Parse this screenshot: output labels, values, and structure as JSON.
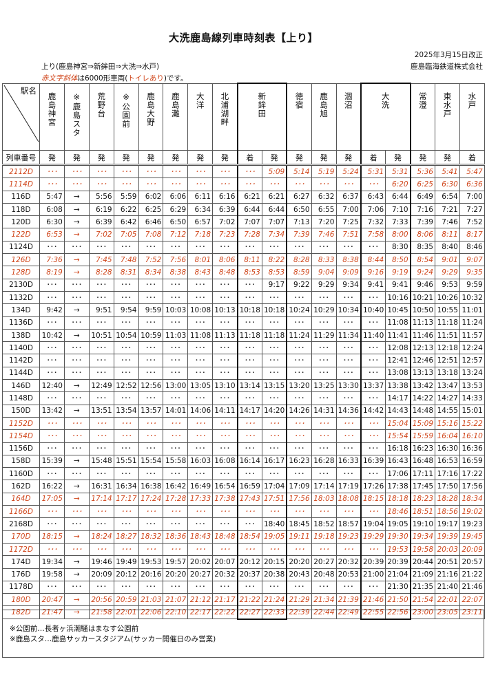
{
  "header": {
    "title": "大洗鹿島線列車時刻表【上り】",
    "revision": "2025年3月15日改正",
    "company": "鹿島臨海鉄道株式会社",
    "direction": "上り(鹿島神宮⇒新鉾田⇒大洗⇒水戸)",
    "note_red1": "赤文字斜体",
    "note_mid": "は6000形車両(",
    "note_red2": "トイレあり",
    "note_end": ")です。"
  },
  "table": {
    "corner_label": "駅名",
    "train_no_label": "列車番号",
    "stations": [
      "鹿島神宮",
      "※鹿島スタ",
      "荒野台",
      "※公園前",
      "鹿島大野",
      "鹿島灘",
      "大洋",
      "北浦湖畔",
      "新鉾田",
      "徳宿",
      "鹿島旭",
      "涸沼",
      "大洗",
      "常澄",
      "東水戸",
      "水戸"
    ],
    "subheaders": [
      "発",
      "発",
      "発",
      "発",
      "発",
      "発",
      "発",
      "発",
      "着",
      "発",
      "発",
      "発",
      "発",
      "着",
      "発",
      "発",
      "発",
      "着"
    ],
    "colors": {
      "red_train": "#d0461b"
    },
    "rows": [
      {
        "train": "2112D",
        "red": true,
        "times": [
          "･･･",
          "･･･",
          "･･･",
          "･･･",
          "･･･",
          "･･･",
          "･･･",
          "･･･",
          "･･･",
          "5:09",
          "5:14",
          "5:19",
          "5:24",
          "5:31",
          "5:31",
          "5:36",
          "5:41",
          "5:47"
        ]
      },
      {
        "train": "1114D",
        "red": true,
        "times": [
          "･･･",
          "･･･",
          "･･･",
          "･･･",
          "･･･",
          "･･･",
          "･･･",
          "･･･",
          "･･･",
          "･･･",
          "･･･",
          "･･･",
          "･･･",
          "･･･",
          "6:20",
          "6:25",
          "6:30",
          "6:36"
        ]
      },
      {
        "train": "116D",
        "red": false,
        "times": [
          "5:47",
          "→",
          "5:56",
          "5:59",
          "6:02",
          "6:06",
          "6:11",
          "6:16",
          "6:21",
          "6:21",
          "6:27",
          "6:32",
          "6:37",
          "6:43",
          "6:44",
          "6:49",
          "6:54",
          "7:00"
        ]
      },
      {
        "train": "118D",
        "red": false,
        "times": [
          "6:08",
          "→",
          "6:19",
          "6:22",
          "6:25",
          "6:29",
          "6:34",
          "6:39",
          "6:44",
          "6:44",
          "6:50",
          "6:55",
          "7:00",
          "7:06",
          "7:10",
          "7:16",
          "7:21",
          "7:27"
        ]
      },
      {
        "train": "120D",
        "red": false,
        "times": [
          "6:30",
          "→",
          "6:39",
          "6:42",
          "6:46",
          "6:50",
          "6:57",
          "7:02",
          "7:07",
          "7:07",
          "7:13",
          "7:20",
          "7:25",
          "7:32",
          "7:33",
          "7:39",
          "7:46",
          "7:52"
        ]
      },
      {
        "train": "122D",
        "red": true,
        "times": [
          "6:53",
          "→",
          "7:02",
          "7:05",
          "7:08",
          "7:12",
          "7:18",
          "7:23",
          "7:28",
          "7:34",
          "7:39",
          "7:46",
          "7:51",
          "7:58",
          "8:00",
          "8:06",
          "8:11",
          "8:17"
        ]
      },
      {
        "train": "1124D",
        "red": false,
        "times": [
          "･･･",
          "･･･",
          "･･･",
          "･･･",
          "･･･",
          "･･･",
          "･･･",
          "･･･",
          "･･･",
          "･･･",
          "･･･",
          "･･･",
          "･･･",
          "･･･",
          "8:30",
          "8:35",
          "8:40",
          "8:46"
        ]
      },
      {
        "train": "126D",
        "red": true,
        "times": [
          "7:36",
          "→",
          "7:45",
          "7:48",
          "7:52",
          "7:56",
          "8:01",
          "8:06",
          "8:11",
          "8:22",
          "8:28",
          "8:33",
          "8:38",
          "8:44",
          "8:50",
          "8:54",
          "9:01",
          "9:07"
        ]
      },
      {
        "train": "128D",
        "red": true,
        "times": [
          "8:19",
          "→",
          "8:28",
          "8:31",
          "8:34",
          "8:38",
          "8:43",
          "8:48",
          "8:53",
          "8:53",
          "8:59",
          "9:04",
          "9:09",
          "9:16",
          "9:19",
          "9:24",
          "9:29",
          "9:35"
        ]
      },
      {
        "train": "2130D",
        "red": false,
        "times": [
          "･･･",
          "･･･",
          "･･･",
          "･･･",
          "･･･",
          "･･･",
          "･･･",
          "･･･",
          "･･･",
          "9:17",
          "9:22",
          "9:29",
          "9:34",
          "9:41",
          "9:41",
          "9:46",
          "9:53",
          "9:59"
        ]
      },
      {
        "train": "1132D",
        "red": false,
        "times": [
          "･･･",
          "･･･",
          "･･･",
          "･･･",
          "･･･",
          "･･･",
          "･･･",
          "･･･",
          "･･･",
          "･･･",
          "･･･",
          "･･･",
          "･･･",
          "･･･",
          "10:16",
          "10:21",
          "10:26",
          "10:32"
        ]
      },
      {
        "train": "134D",
        "red": false,
        "times": [
          "9:42",
          "→",
          "9:51",
          "9:54",
          "9:59",
          "10:03",
          "10:08",
          "10:13",
          "10:18",
          "10:18",
          "10:24",
          "10:29",
          "10:34",
          "10:40",
          "10:45",
          "10:50",
          "10:55",
          "11:01"
        ]
      },
      {
        "train": "1136D",
        "red": false,
        "times": [
          "･･･",
          "･･･",
          "･･･",
          "･･･",
          "･･･",
          "･･･",
          "･･･",
          "･･･",
          "･･･",
          "･･･",
          "･･･",
          "･･･",
          "･･･",
          "･･･",
          "11:08",
          "11:13",
          "11:18",
          "11:24"
        ]
      },
      {
        "train": "138D",
        "red": false,
        "times": [
          "10:42",
          "→",
          "10:51",
          "10:54",
          "10:59",
          "11:03",
          "11:08",
          "11:13",
          "11:18",
          "11:18",
          "11:24",
          "11:29",
          "11:34",
          "11:40",
          "11:41",
          "11:46",
          "11:51",
          "11:57"
        ]
      },
      {
        "train": "1140D",
        "red": false,
        "times": [
          "･･･",
          "･･･",
          "･･･",
          "･･･",
          "･･･",
          "･･･",
          "･･･",
          "･･･",
          "･･･",
          "･･･",
          "･･･",
          "･･･",
          "･･･",
          "･･･",
          "12:08",
          "12:13",
          "12:18",
          "12:24"
        ]
      },
      {
        "train": "1142D",
        "red": false,
        "times": [
          "･･･",
          "･･･",
          "･･･",
          "･･･",
          "･･･",
          "･･･",
          "･･･",
          "･･･",
          "･･･",
          "･･･",
          "･･･",
          "･･･",
          "･･･",
          "･･･",
          "12:41",
          "12:46",
          "12:51",
          "12:57"
        ]
      },
      {
        "train": "1144D",
        "red": false,
        "times": [
          "･･･",
          "･･･",
          "･･･",
          "･･･",
          "･･･",
          "･･･",
          "･･･",
          "･･･",
          "･･･",
          "･･･",
          "･･･",
          "･･･",
          "･･･",
          "･･･",
          "13:08",
          "13:13",
          "13:18",
          "13:24"
        ]
      },
      {
        "train": "146D",
        "red": false,
        "times": [
          "12:40",
          "→",
          "12:49",
          "12:52",
          "12:56",
          "13:00",
          "13:05",
          "13:10",
          "13:14",
          "13:15",
          "13:20",
          "13:25",
          "13:30",
          "13:37",
          "13:38",
          "13:42",
          "13:47",
          "13:53"
        ]
      },
      {
        "train": "1148D",
        "red": false,
        "times": [
          "･･･",
          "･･･",
          "･･･",
          "･･･",
          "･･･",
          "･･･",
          "･･･",
          "･･･",
          "･･･",
          "･･･",
          "･･･",
          "･･･",
          "･･･",
          "･･･",
          "14:17",
          "14:22",
          "14:27",
          "14:33"
        ]
      },
      {
        "train": "150D",
        "red": false,
        "times": [
          "13:42",
          "→",
          "13:51",
          "13:54",
          "13:57",
          "14:01",
          "14:06",
          "14:11",
          "14:17",
          "14:20",
          "14:26",
          "14:31",
          "14:36",
          "14:42",
          "14:43",
          "14:48",
          "14:55",
          "15:01"
        ]
      },
      {
        "train": "1152D",
        "red": true,
        "times": [
          "･･･",
          "･･･",
          "･･･",
          "･･･",
          "･･･",
          "･･･",
          "･･･",
          "･･･",
          "･･･",
          "･･･",
          "･･･",
          "･･･",
          "･･･",
          "･･･",
          "15:04",
          "15:09",
          "15:16",
          "15:22"
        ]
      },
      {
        "train": "1154D",
        "red": true,
        "times": [
          "･･･",
          "･･･",
          "･･･",
          "･･･",
          "･･･",
          "･･･",
          "･･･",
          "･･･",
          "･･･",
          "･･･",
          "･･･",
          "･･･",
          "･･･",
          "･･･",
          "15:54",
          "15:59",
          "16:04",
          "16:10"
        ]
      },
      {
        "train": "1156D",
        "red": false,
        "times": [
          "･･･",
          "･･･",
          "･･･",
          "･･･",
          "･･･",
          "･･･",
          "･･･",
          "･･･",
          "･･･",
          "･･･",
          "･･･",
          "･･･",
          "･･･",
          "･･･",
          "16:18",
          "16:23",
          "16:30",
          "16:36"
        ]
      },
      {
        "train": "158D",
        "red": false,
        "times": [
          "15:39",
          "→",
          "15:48",
          "15:51",
          "15:54",
          "15:58",
          "16:03",
          "16:08",
          "16:14",
          "16:17",
          "16:23",
          "16:28",
          "16:33",
          "16:39",
          "16:43",
          "16:48",
          "16:53",
          "16:59"
        ]
      },
      {
        "train": "1160D",
        "red": false,
        "times": [
          "･･･",
          "･･･",
          "･･･",
          "･･･",
          "･･･",
          "･･･",
          "･･･",
          "･･･",
          "･･･",
          "･･･",
          "･･･",
          "･･･",
          "･･･",
          "･･･",
          "17:06",
          "17:11",
          "17:16",
          "17:22"
        ]
      },
      {
        "train": "162D",
        "red": false,
        "times": [
          "16:22",
          "→",
          "16:31",
          "16:34",
          "16:38",
          "16:42",
          "16:49",
          "16:54",
          "16:59",
          "17:04",
          "17:09",
          "17:14",
          "17:19",
          "17:26",
          "17:38",
          "17:45",
          "17:50",
          "17:56"
        ]
      },
      {
        "train": "164D",
        "red": true,
        "times": [
          "17:05",
          "→",
          "17:14",
          "17:17",
          "17:24",
          "17:28",
          "17:33",
          "17:38",
          "17:43",
          "17:51",
          "17:56",
          "18:03",
          "18:08",
          "18:15",
          "18:18",
          "18:23",
          "18:28",
          "18:34"
        ]
      },
      {
        "train": "1166D",
        "red": true,
        "times": [
          "･･･",
          "･･･",
          "･･･",
          "･･･",
          "･･･",
          "･･･",
          "･･･",
          "･･･",
          "･･･",
          "･･･",
          "･･･",
          "･･･",
          "･･･",
          "･･･",
          "18:46",
          "18:51",
          "18:56",
          "19:02"
        ]
      },
      {
        "train": "2168D",
        "red": false,
        "times": [
          "･･･",
          "･･･",
          "･･･",
          "･･･",
          "･･･",
          "･･･",
          "･･･",
          "･･･",
          "･･･",
          "18:40",
          "18:45",
          "18:52",
          "18:57",
          "19:04",
          "19:05",
          "19:10",
          "19:17",
          "19:23"
        ]
      },
      {
        "train": "170D",
        "red": true,
        "times": [
          "18:15",
          "→",
          "18:24",
          "18:27",
          "18:32",
          "18:36",
          "18:43",
          "18:48",
          "18:54",
          "19:05",
          "19:11",
          "19:18",
          "19:23",
          "19:29",
          "19:30",
          "19:34",
          "19:39",
          "19:45"
        ]
      },
      {
        "train": "1172D",
        "red": true,
        "times": [
          "･･･",
          "･･･",
          "･･･",
          "･･･",
          "･･･",
          "･･･",
          "･･･",
          "･･･",
          "･･･",
          "･･･",
          "･･･",
          "･･･",
          "･･･",
          "･･･",
          "19:53",
          "19:58",
          "20:03",
          "20:09"
        ]
      },
      {
        "train": "174D",
        "red": false,
        "times": [
          "19:34",
          "→",
          "19:46",
          "19:49",
          "19:53",
          "19:57",
          "20:02",
          "20:07",
          "20:12",
          "20:15",
          "20:20",
          "20:27",
          "20:32",
          "20:39",
          "20:39",
          "20:44",
          "20:51",
          "20:57"
        ]
      },
      {
        "train": "176D",
        "red": false,
        "times": [
          "19:58",
          "→",
          "20:09",
          "20:12",
          "20:16",
          "20:20",
          "20:27",
          "20:32",
          "20:37",
          "20:38",
          "20:43",
          "20:48",
          "20:53",
          "21:00",
          "21:04",
          "21:09",
          "21:16",
          "21:22"
        ]
      },
      {
        "train": "1178D",
        "red": false,
        "times": [
          "･･･",
          "･･･",
          "･･･",
          "･･･",
          "･･･",
          "･･･",
          "･･･",
          "･･･",
          "･･･",
          "･･･",
          "･･･",
          "･･･",
          "･･･",
          "･･･",
          "21:30",
          "21:35",
          "21:40",
          "21:46"
        ]
      },
      {
        "train": "180D",
        "red": true,
        "times": [
          "20:47",
          "→",
          "20:56",
          "20:59",
          "21:03",
          "21:07",
          "21:12",
          "21:17",
          "21:22",
          "21:24",
          "21:29",
          "21:34",
          "21:39",
          "21:46",
          "21:50",
          "21:54",
          "22:01",
          "22:07"
        ]
      },
      {
        "train": "182D",
        "red": true,
        "times": [
          "21:47",
          "→",
          "21:58",
          "22:01",
          "22:06",
          "22:10",
          "22:17",
          "22:22",
          "22:27",
          "22:33",
          "22:39",
          "22:44",
          "22:49",
          "22:55",
          "22:56",
          "23:00",
          "23:05",
          "23:11"
        ]
      }
    ]
  },
  "footer": {
    "notes": [
      "※公園前…長者ヶ浜潮騒はまなす公園前",
      "※鹿島スタ…鹿島サッカースタジアム(サッカー開催日のみ営業)"
    ]
  }
}
